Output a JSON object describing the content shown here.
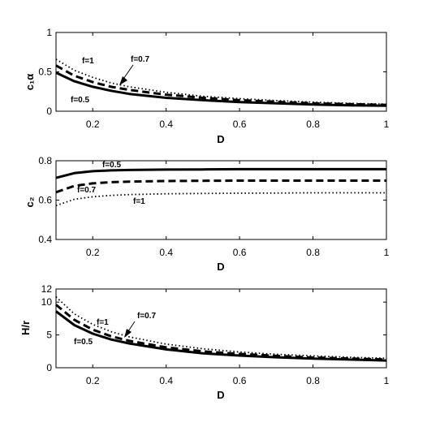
{
  "chart_data": [
    {
      "type": "line",
      "xlabel": "D",
      "ylabel": "c₁α",
      "xlim": [
        0.1,
        1
      ],
      "ylim": [
        0,
        1
      ],
      "xticks": [
        0.2,
        0.4,
        0.6,
        0.8,
        1
      ],
      "xtick_labels": [
        "0.2",
        "0.4",
        "0.6",
        "0.8",
        "1"
      ],
      "yticks": [
        0,
        0.5,
        1
      ],
      "ytick_labels": [
        "0",
        "0.5",
        "1"
      ],
      "x": [
        0.1,
        0.15,
        0.2,
        0.25,
        0.3,
        0.4,
        0.5,
        0.6,
        0.7,
        0.8,
        0.9,
        1.0
      ],
      "series": [
        {
          "name": "f=0.5",
          "style": "solid",
          "values": [
            0.49,
            0.38,
            0.31,
            0.26,
            0.22,
            0.17,
            0.14,
            0.115,
            0.1,
            0.085,
            0.075,
            0.07
          ]
        },
        {
          "name": "f=0.7",
          "style": "dashed",
          "values": [
            0.58,
            0.45,
            0.37,
            0.31,
            0.27,
            0.21,
            0.17,
            0.14,
            0.12,
            0.1,
            0.09,
            0.08
          ]
        },
        {
          "name": "f=1",
          "style": "dotted",
          "values": [
            0.66,
            0.52,
            0.43,
            0.36,
            0.31,
            0.24,
            0.19,
            0.16,
            0.135,
            0.115,
            0.1,
            0.09
          ]
        }
      ],
      "annotations": [
        "f=1",
        "f=0.7",
        "f=0.5"
      ]
    },
    {
      "type": "line",
      "xlabel": "D",
      "ylabel": "c₂",
      "xlim": [
        0.1,
        1
      ],
      "ylim": [
        0.4,
        0.8
      ],
      "xticks": [
        0.2,
        0.4,
        0.6,
        0.8,
        1
      ],
      "xtick_labels": [
        "0.2",
        "0.4",
        "0.6",
        "0.8",
        "1"
      ],
      "yticks": [
        0.4,
        0.6,
        0.8
      ],
      "ytick_labels": [
        "0.4",
        "0.6",
        "0.8"
      ],
      "x": [
        0.1,
        0.15,
        0.2,
        0.25,
        0.3,
        0.4,
        0.5,
        0.6,
        0.7,
        0.8,
        0.9,
        1.0
      ],
      "series": [
        {
          "name": "f=0.5",
          "style": "solid",
          "values": [
            0.713,
            0.737,
            0.747,
            0.751,
            0.753,
            0.755,
            0.756,
            0.757,
            0.757,
            0.757,
            0.757,
            0.757
          ]
        },
        {
          "name": "f=0.7",
          "style": "dashed",
          "values": [
            0.64,
            0.672,
            0.685,
            0.691,
            0.694,
            0.697,
            0.698,
            0.699,
            0.699,
            0.699,
            0.699,
            0.699
          ]
        },
        {
          "name": "f=1",
          "style": "dotted",
          "values": [
            0.572,
            0.604,
            0.617,
            0.624,
            0.628,
            0.632,
            0.634,
            0.635,
            0.636,
            0.637,
            0.637,
            0.637
          ]
        }
      ],
      "annotations": [
        "f=0.5",
        "f=0.7",
        "f=1"
      ]
    },
    {
      "type": "line",
      "xlabel": "D",
      "ylabel": "H/r",
      "xlim": [
        0.1,
        1
      ],
      "ylim": [
        0,
        12
      ],
      "xticks": [
        0.2,
        0.4,
        0.6,
        0.8,
        1
      ],
      "xtick_labels": [
        "0.2",
        "0.4",
        "0.6",
        "0.8",
        "1"
      ],
      "yticks": [
        0,
        5,
        10,
        12
      ],
      "ytick_labels": [
        "0",
        "5",
        "10",
        "12"
      ],
      "x": [
        0.1,
        0.15,
        0.2,
        0.25,
        0.3,
        0.4,
        0.5,
        0.6,
        0.7,
        0.8,
        0.9,
        1.0
      ],
      "series": [
        {
          "name": "f=0.5",
          "style": "solid",
          "values": [
            8.6,
            6.5,
            5.2,
            4.3,
            3.7,
            2.8,
            2.2,
            1.85,
            1.6,
            1.4,
            1.25,
            1.1
          ]
        },
        {
          "name": "f=0.7",
          "style": "dashed",
          "values": [
            9.6,
            7.3,
            5.8,
            4.8,
            4.1,
            3.1,
            2.5,
            2.1,
            1.8,
            1.55,
            1.4,
            1.25
          ]
        },
        {
          "name": "f=1",
          "style": "dotted",
          "values": [
            10.8,
            8.2,
            6.6,
            5.5,
            4.7,
            3.6,
            2.9,
            2.4,
            2.05,
            1.8,
            1.6,
            1.45
          ]
        }
      ],
      "annotations": [
        "f=1",
        "f=0.7",
        "f=0.5"
      ]
    }
  ]
}
